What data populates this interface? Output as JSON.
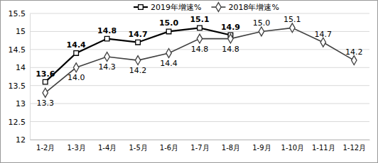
{
  "chart_data": {
    "type": "line",
    "categories": [
      "1-2月",
      "1-3月",
      "1-4月",
      "1-5月",
      "1-6月",
      "1-7月",
      "1-8月",
      "1-9月",
      "1-10月",
      "1-11月",
      "1-12月"
    ],
    "series": [
      {
        "name": "2019年增速%",
        "color": "#000000",
        "marker": "square",
        "line_style": "solid",
        "values": [
          13.6,
          14.4,
          14.8,
          14.7,
          15.0,
          15.1,
          14.9,
          null,
          null,
          null,
          null
        ],
        "value_labels": [
          "13.6",
          "14.4",
          "14.8",
          "14.7",
          "15.0",
          "15.1",
          "14.9",
          null,
          null,
          null,
          null
        ]
      },
      {
        "name": "2018年增速%",
        "color": "#404040",
        "marker": "diamond",
        "line_style": "solid",
        "values": [
          13.3,
          14.0,
          14.3,
          14.2,
          14.4,
          14.8,
          14.8,
          15.0,
          15.1,
          14.7,
          14.2
        ],
        "value_labels": [
          "13.3",
          "14.0",
          "14.3",
          "14.2",
          "14.4",
          "14.8",
          "14.8",
          "15.0",
          "15.1",
          "14.7",
          "14.2"
        ]
      }
    ],
    "ylim": [
      12,
      15.5
    ],
    "yticks": [
      12,
      12.5,
      13,
      13.5,
      14,
      14.5,
      15,
      15.5
    ],
    "grid": true,
    "legend": "top",
    "data_labels": true
  }
}
